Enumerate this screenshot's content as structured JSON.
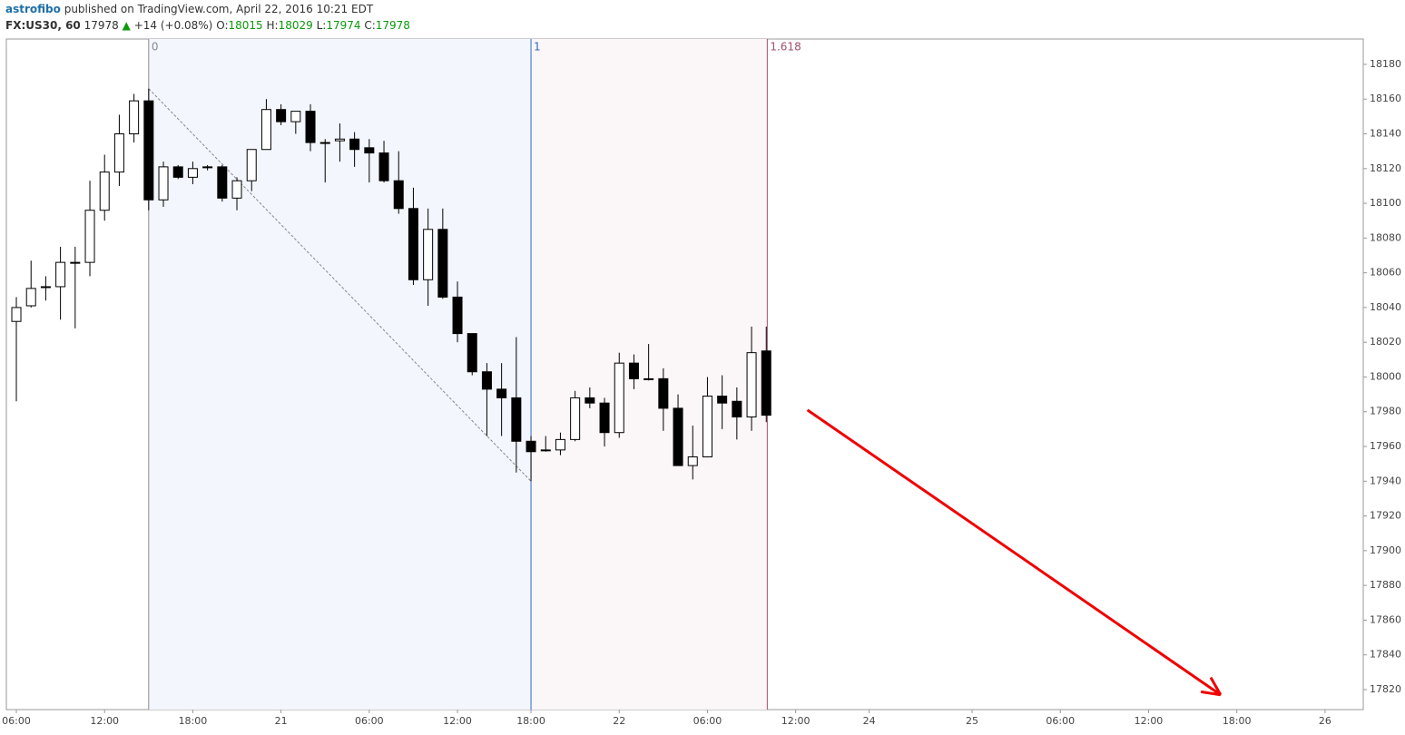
{
  "header": {
    "author": "astrofibo",
    "published": "published on TradingView.com, April 22, 2016 10:21 EDT",
    "symbol": "FX:US30, 60",
    "last": 17978,
    "change": "+14 (+0.08%)",
    "ohlc_labels": [
      "O:",
      "H:",
      "L:",
      "C:"
    ],
    "ohlc": [
      18015,
      18029,
      17974,
      17978
    ]
  },
  "chart_data": {
    "type": "candlestick",
    "open": [
      18032,
      18041,
      18052,
      18052,
      18066,
      18066,
      18096,
      18118,
      18140,
      18159,
      18102,
      18121,
      18115,
      18121,
      18121,
      18103,
      18113,
      18131,
      18154,
      18147,
      18153,
      18135,
      18136,
      18137,
      18132,
      18129,
      18113,
      18097,
      18056,
      18085,
      18046,
      18025,
      18003,
      17993,
      17988,
      17963,
      17958,
      17958,
      17964,
      17988,
      17985,
      17968,
      18008,
      17999,
      17999,
      17982,
      17949,
      17954,
      17989,
      17986,
      17977,
      18015
    ],
    "high": [
      18046,
      18067,
      18058,
      18075,
      18075,
      18113,
      18128,
      18151,
      18163,
      18166,
      18124,
      18122,
      18124,
      18122,
      18122,
      18115,
      18131,
      18160,
      18157,
      18153,
      18157,
      18137,
      18146,
      18141,
      18137,
      18136,
      18130,
      18109,
      18097,
      18097,
      18055,
      18025,
      18008,
      18008,
      18023,
      17966,
      17966,
      17968,
      17992,
      17994,
      17988,
      18014,
      18013,
      18019,
      18005,
      17990,
      17972,
      18000,
      18001,
      17994,
      18029,
      18029
    ],
    "low": [
      17986,
      18040,
      18044,
      18033,
      18028,
      18058,
      18090,
      18110,
      18135,
      18096,
      18098,
      18114,
      18111,
      18119,
      18101,
      18096,
      18107,
      18131,
      18145,
      18140,
      18130,
      18112,
      18124,
      18121,
      18112,
      18112,
      18094,
      18053,
      18041,
      18045,
      18020,
      18001,
      17966,
      17966,
      17945,
      17940,
      17957,
      17955,
      17963,
      17982,
      17960,
      17965,
      17993,
      17998,
      17969,
      17949,
      17941,
      17954,
      17970,
      17964,
      17969,
      17974
    ],
    "close": [
      18040,
      18051,
      18052,
      18066,
      18066,
      18096,
      18118,
      18140,
      18159,
      18102,
      18121,
      18115,
      18120,
      18121,
      18103,
      18113,
      18131,
      18154,
      18147,
      18153,
      18135,
      18135,
      18137,
      18131,
      18129,
      18113,
      18097,
      18056,
      18085,
      18046,
      18025,
      18003,
      17993,
      17988,
      17963,
      17957,
      17958,
      17964,
      17988,
      17985,
      17968,
      18008,
      17999,
      17999,
      17982,
      17949,
      17954,
      17989,
      17985,
      17977,
      18014,
      17978
    ],
    "ylim": [
      17808.5,
      18194.6
    ],
    "yticks": [
      17820,
      17840,
      17860,
      17880,
      17900,
      17920,
      17940,
      17960,
      17980,
      18000,
      18020,
      18040,
      18060,
      18080,
      18100,
      18120,
      18140,
      18160,
      18180
    ],
    "xlim": [
      -0.68,
      91.6
    ],
    "xticks": [
      {
        "value": 0,
        "label": "06:00"
      },
      {
        "value": 6,
        "label": "12:00"
      },
      {
        "value": 12,
        "label": "18:00"
      },
      {
        "value": 18,
        "label": "21"
      },
      {
        "value": 24,
        "label": "06:00"
      },
      {
        "value": 30,
        "label": "12:00"
      },
      {
        "value": 35,
        "label": "18:00"
      },
      {
        "value": 41,
        "label": "22"
      },
      {
        "value": 47,
        "label": "06:00"
      },
      {
        "value": 53,
        "label": "12:00"
      },
      {
        "value": 58,
        "label": "24"
      },
      {
        "value": 65,
        "label": "25"
      },
      {
        "value": 71,
        "label": "06:00"
      },
      {
        "value": 77,
        "label": "12:00"
      },
      {
        "value": 83,
        "label": "18:00"
      },
      {
        "value": 89,
        "label": "26"
      }
    ],
    "fib_time_zone": {
      "start": 9,
      "end": 35,
      "levels": [
        0,
        1,
        1.618
      ],
      "colors": [
        "#8a8a8a",
        "#2f6ac8",
        "#a0506e"
      ],
      "fills": [
        "#f3f6fd",
        "#fbf6f7"
      ]
    },
    "trend_line": {
      "points": [
        [
          9,
          18166
        ],
        [
          35,
          17940
        ]
      ]
    },
    "arrow": {
      "from": [
        53.8,
        17981
      ],
      "to": [
        81.9,
        17817
      ],
      "color": "#f00000"
    }
  }
}
